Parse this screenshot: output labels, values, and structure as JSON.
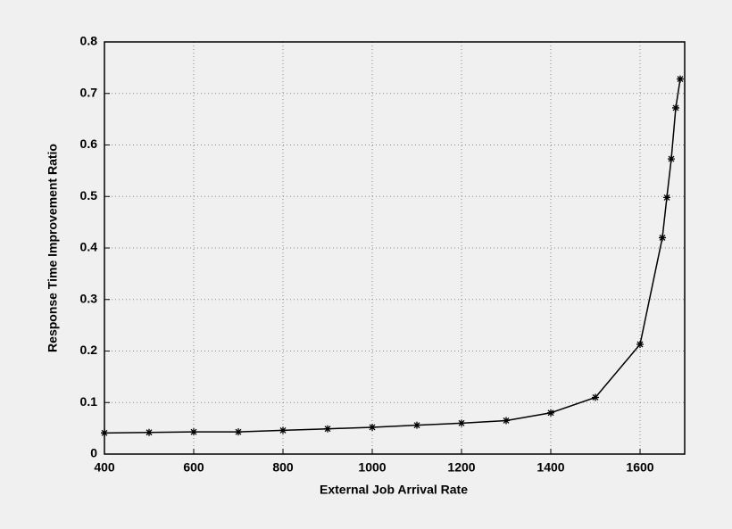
{
  "chart_data": {
    "type": "line",
    "xlabel": "External Job Arrival Rate",
    "ylabel": "Response Time Improvement Ratio",
    "x": [
      400,
      500,
      600,
      700,
      800,
      900,
      1000,
      1100,
      1200,
      1300,
      1400,
      1500,
      1600,
      1650,
      1660,
      1670,
      1680,
      1690
    ],
    "series": [
      {
        "color": "#000000",
        "values": [
          0.041,
          0.042,
          0.043,
          0.043,
          0.046,
          0.049,
          0.052,
          0.056,
          0.06,
          0.065,
          0.08,
          0.11,
          0.213,
          0.42,
          0.498,
          0.573,
          0.672,
          0.728
        ]
      }
    ],
    "xlim": [
      400,
      1700
    ],
    "ylim": [
      0,
      0.8
    ],
    "xticks": [
      400,
      600,
      800,
      1000,
      1200,
      1400,
      1600
    ],
    "yticks": [
      0,
      0.1,
      0.2,
      0.3,
      0.4,
      0.5,
      0.6,
      0.7,
      0.8
    ],
    "grid": true
  }
}
